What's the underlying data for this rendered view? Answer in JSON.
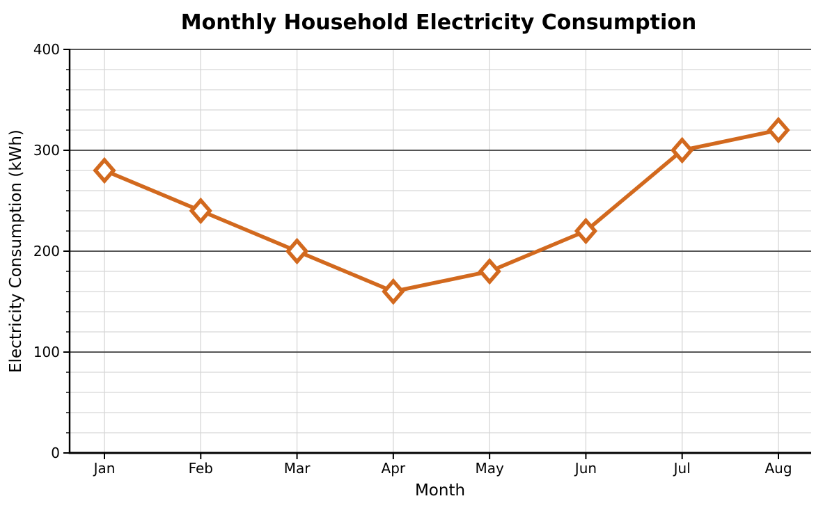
{
  "figure": {
    "background": "#ffffff"
  },
  "chart_data": {
    "type": "line",
    "title": "Monthly Household Electricity Consumption",
    "xlabel": "Month",
    "ylabel": "Electricity Consumption (kWh)",
    "categories": [
      "Jan",
      "Feb",
      "Mar",
      "Apr",
      "May",
      "Jun",
      "Jul",
      "Aug"
    ],
    "series": [
      {
        "name": "Monthly Household Electricity Consumption",
        "values": [
          280,
          240,
          200,
          160,
          180,
          220,
          300,
          320
        ],
        "color": "#d2691e",
        "marker": "diamond",
        "marker_face": "#ffffff"
      }
    ],
    "ylim": [
      0,
      400
    ],
    "y_major_ticks": [
      0,
      100,
      200,
      300,
      400
    ],
    "y_minor_step": 20,
    "grid": {
      "major": true,
      "minor": true,
      "major_color": "#555555",
      "minor_color": "#d6d6d6",
      "vertical_color": "#d6d6d6"
    },
    "legend_position": "none",
    "axis_color": "#000000"
  }
}
